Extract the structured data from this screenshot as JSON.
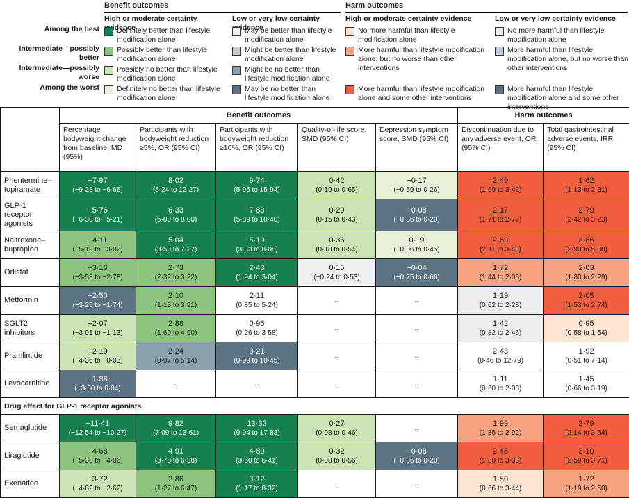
{
  "chart_data": {
    "type": "heatmap",
    "palette": {
      "g1": "#17804F",
      "g2": "#8CC47E",
      "g3": "#CBE4B4",
      "g4": "#E8F1DA",
      "b1": "#EEF0F1",
      "b2": "#C4CED4",
      "b3": "#8BA1AD",
      "b4": "#5B7383",
      "r1": "#FCE4D3",
      "r2": "#F5A380",
      "r3": "#F15E3E",
      "h1": "#ECEDEE",
      "h2": "#C2CDD3",
      "h3": "#5B7383",
      "w": "#FFFFFF"
    },
    "legend": {
      "row_labels": [
        "Among the best",
        "Intermediate—possibly better",
        "Intermediate—possibly worse",
        "Among the worst"
      ],
      "sections": [
        {
          "title": "Benefit outcomes",
          "groups": [
            {
              "title": "High or moderate certainty evidence",
              "items": [
                {
                  "slot": 0,
                  "color": "g1",
                  "label": "Definitely better than lifestyle modification alone"
                },
                {
                  "slot": 1,
                  "color": "g2",
                  "label": "Possibly better than lifestyle modification alone"
                },
                {
                  "slot": 2,
                  "color": "g3",
                  "label": "Possibly no better than lifestyle modification alone"
                },
                {
                  "slot": 3,
                  "color": "g4",
                  "label": "Definitely no better than lifestyle modification alone"
                }
              ]
            },
            {
              "title": "Low or very low certainty evidence",
              "items": [
                {
                  "slot": 0,
                  "color": "b1",
                  "label": "May be better than lifestyle modification alone"
                },
                {
                  "slot": 1,
                  "color": "b2",
                  "label": "Might be better than lifestyle modification alone"
                },
                {
                  "slot": 2,
                  "color": "b3",
                  "label": "Might be no better than lifestyle modification alone"
                },
                {
                  "slot": 3,
                  "color": "b4",
                  "label": "May be no better than lifestyle modification alone"
                }
              ]
            }
          ]
        },
        {
          "title": "Harm outcomes",
          "groups": [
            {
              "title": "High or moderate certainty evidence",
              "items": [
                {
                  "slot": 0,
                  "color": "r1",
                  "label": "No more harmful than lifestyle modification alone"
                },
                {
                  "slot": 1,
                  "color": "r2",
                  "label": "More harmful than lifestyle modification alone, but no worse than other interventions"
                },
                {
                  "slot": 3,
                  "color": "r3",
                  "label": "More harmful than lifestyle modification alone and some other interventions"
                }
              ]
            },
            {
              "title": "Low or very low certainty evidence",
              "items": [
                {
                  "slot": 0,
                  "color": "h1",
                  "label": "No more harmful than lifestyle modification alone"
                },
                {
                  "slot": 1,
                  "color": "h2",
                  "label": "More harmful than lifestyle modification alone, but no worse than other interventions"
                },
                {
                  "slot": 3,
                  "color": "h3",
                  "label": "More harmful than lifestyle modification alone and some other interventions"
                }
              ]
            }
          ]
        }
      ]
    },
    "table": {
      "group_headers": [
        {
          "label": "Benefit outcomes",
          "span": 5
        },
        {
          "label": "Harm outcomes",
          "span": 2
        }
      ],
      "columns": [
        "Percentage bodyweight change from baseline, MD (95%)",
        "Participants with bodyweight reduction ≥5%, OR (95% CI)",
        "Participants with bodyweight reduction ≥10%, OR (95% CI)",
        "Quality-of-life score, SMD (95% CI)",
        "Depression symptom score, SMD (95% CI)",
        "Discontinuation due to any adverse event, OR (95% CI)",
        "Total gastrointestinal adverse events, IRR (95% CI)"
      ],
      "rows": [
        {
          "label": "Phentermine–topiramate",
          "cells": [
            {
              "v": "−7·97",
              "ci": "(−9·28 to −6·66)",
              "c": "g1"
            },
            {
              "v": "8·02",
              "ci": "(5·24 to 12·27)",
              "c": "g1"
            },
            {
              "v": "9·74",
              "ci": "(5·95 to 15·94)",
              "c": "g1"
            },
            {
              "v": "0·42",
              "ci": "(0·19 to 0·65)",
              "c": "g3"
            },
            {
              "v": "−0·17",
              "ci": "(−0·59 to 0·26)",
              "c": "g4"
            },
            {
              "v": "2·40",
              "ci": "(1·69 to 3·42)",
              "c": "r3"
            },
            {
              "v": "1·62",
              "ci": "(1·13 to 2·31)",
              "c": "r3"
            }
          ]
        },
        {
          "label": "GLP-1 receptor agonists",
          "cells": [
            {
              "v": "−5·76",
              "ci": "(−6·30 to −5·21)",
              "c": "g1"
            },
            {
              "v": "6·33",
              "ci": "(5·00 to 8·00)",
              "c": "g1"
            },
            {
              "v": "7·83",
              "ci": "(5·89 to 10·40)",
              "c": "g1"
            },
            {
              "v": "0·29",
              "ci": "(0·15 to 0·43)",
              "c": "g3"
            },
            {
              "v": "−0·08",
              "ci": "(−0·36 to 0·20)",
              "c": "b4"
            },
            {
              "v": "2·17",
              "ci": "(1·71 to 2·77)",
              "c": "r3"
            },
            {
              "v": "2·79",
              "ci": "(2·42 to 3·23)",
              "c": "r3"
            }
          ]
        },
        {
          "label": "Naltrexone–bupropion",
          "cells": [
            {
              "v": "−4·11",
              "ci": "(−5·19 to −3·02)",
              "c": "g2"
            },
            {
              "v": "5·04",
              "ci": "(3·50 to 7·27)",
              "c": "g1"
            },
            {
              "v": "5·19",
              "ci": "(3·33 to 8·08)",
              "c": "g1"
            },
            {
              "v": "0·36",
              "ci": "(0·18 to 0·54)",
              "c": "g3"
            },
            {
              "v": "0·19",
              "ci": "(−0·06 to 0·45)",
              "c": "g4"
            },
            {
              "v": "2·69",
              "ci": "(2·11 to 3·43)",
              "c": "r3"
            },
            {
              "v": "3·86",
              "ci": "(2·93 to 5·08)",
              "c": "r3"
            }
          ]
        },
        {
          "label": "Orlistat",
          "cells": [
            {
              "v": "−3·16",
              "ci": "(−3·53 to −2·78)",
              "c": "g2"
            },
            {
              "v": "2·73",
              "ci": "(2·32 to 3·22)",
              "c": "g2"
            },
            {
              "v": "2·43",
              "ci": "(1·94 to 3·04)",
              "c": "g1"
            },
            {
              "v": "0·15",
              "ci": "(−0·24 to 0·53)",
              "c": "b1"
            },
            {
              "v": "−0·04",
              "ci": "(−0·75 to 0·66)",
              "c": "b4"
            },
            {
              "v": "1·72",
              "ci": "(1·44 to 2·05)",
              "c": "r2"
            },
            {
              "v": "2·03",
              "ci": "(1·80 to 2·29)",
              "c": "r2"
            }
          ]
        },
        {
          "label": "Metformin",
          "cells": [
            {
              "v": "−2·50",
              "ci": "(−3·25 to −1·74)",
              "c": "b4"
            },
            {
              "v": "2·10",
              "ci": "(1·13 to 3·91)",
              "c": "g2"
            },
            {
              "v": "2·11",
              "ci": "(0·85 to 5·24)",
              "c": "w"
            },
            {
              "v": "..",
              "ci": "",
              "c": "w"
            },
            {
              "v": "..",
              "ci": "",
              "c": "w"
            },
            {
              "v": "1·19",
              "ci": "(0·62 to 2·28)",
              "c": "h1"
            },
            {
              "v": "2·05",
              "ci": "(1·53 to 2·74)",
              "c": "r3"
            }
          ]
        },
        {
          "label": "SGLT2 inhibitors",
          "cells": [
            {
              "v": "−2·07",
              "ci": "(−3·01 to −1·13)",
              "c": "g3"
            },
            {
              "v": "2·88",
              "ci": "(1·69 to 4·90)",
              "c": "g2"
            },
            {
              "v": "0·96",
              "ci": "(0·26 to 3·58)",
              "c": "w"
            },
            {
              "v": "..",
              "ci": "",
              "c": "w"
            },
            {
              "v": "..",
              "ci": "",
              "c": "w"
            },
            {
              "v": "1·42",
              "ci": "(0·82 to 2·46)",
              "c": "h1"
            },
            {
              "v": "0·95",
              "ci": "(0·58 to 1·54)",
              "c": "r1"
            }
          ]
        },
        {
          "label": "Pramlintide",
          "cells": [
            {
              "v": "−2·19",
              "ci": "(−4·36 to −0·03)",
              "c": "g3"
            },
            {
              "v": "2·24",
              "ci": "(0·97 to 5·14)",
              "c": "b3"
            },
            {
              "v": "3·21",
              "ci": "(0·99 to 10·45)",
              "c": "b4"
            },
            {
              "v": "..",
              "ci": "",
              "c": "w"
            },
            {
              "v": "..",
              "ci": "",
              "c": "w"
            },
            {
              "v": "2·43",
              "ci": "(0·46 to 12·79)",
              "c": "w"
            },
            {
              "v": "1·92",
              "ci": "(0·51 to 7·14)",
              "c": "w"
            }
          ]
        },
        {
          "label": "Levocarnitine",
          "cells": [
            {
              "v": "−1·88",
              "ci": "(−3·80 to 0·04)",
              "c": "b4"
            },
            {
              "v": "..",
              "ci": "",
              "c": "w"
            },
            {
              "v": "..",
              "ci": "",
              "c": "w"
            },
            {
              "v": "..",
              "ci": "",
              "c": "w"
            },
            {
              "v": "..",
              "ci": "",
              "c": "w"
            },
            {
              "v": "1·11",
              "ci": "(0·60 to 2·08)",
              "c": "w"
            },
            {
              "v": "1·45",
              "ci": "(0·66 to 3·19)",
              "c": "w"
            }
          ]
        },
        {
          "section": "Drug effect for GLP-1 receptor agonists"
        },
        {
          "label": "Semaglutide",
          "cells": [
            {
              "v": "−11·41",
              "ci": "(−12·54 to −10·27)",
              "c": "g1"
            },
            {
              "v": "9·82",
              "ci": "(7·09 to 13·61)",
              "c": "g1"
            },
            {
              "v": "13·32",
              "ci": "(9·94 to 17·83)",
              "c": "g1"
            },
            {
              "v": "0·27",
              "ci": "(0·08 to 0·46)",
              "c": "g3"
            },
            {
              "v": "..",
              "ci": "",
              "c": "w"
            },
            {
              "v": "1·99",
              "ci": "(1·35 to 2·92)",
              "c": "r2"
            },
            {
              "v": "2·79",
              "ci": "(2·14 to 3·64)",
              "c": "r3"
            }
          ]
        },
        {
          "label": "Liraglutide",
          "cells": [
            {
              "v": "−4·68",
              "ci": "(−5·30 to −4·06)",
              "c": "g2"
            },
            {
              "v": "4·91",
              "ci": "(3·78 to 6·38)",
              "c": "g1"
            },
            {
              "v": "4·80",
              "ci": "(3·60 to 6·41)",
              "c": "g1"
            },
            {
              "v": "0·32",
              "ci": "(0·08 to 0·56)",
              "c": "g3"
            },
            {
              "v": "−0·08",
              "ci": "(−0·36 to 0·20)",
              "c": "b4"
            },
            {
              "v": "2·45",
              "ci": "(1·80 to 3·33)",
              "c": "r3"
            },
            {
              "v": "3·10",
              "ci": "(2·59 to 3·71)",
              "c": "r3"
            }
          ]
        },
        {
          "label": "Exenatide",
          "cells": [
            {
              "v": "−3·72",
              "ci": "(−4·82 to −2·62)",
              "c": "g3"
            },
            {
              "v": "2·86",
              "ci": "(1·27 to 6·47)",
              "c": "g2"
            },
            {
              "v": "3·12",
              "ci": "(1·17 to 8·32)",
              "c": "g1"
            },
            {
              "v": "..",
              "ci": "",
              "c": "w"
            },
            {
              "v": "..",
              "ci": "",
              "c": "w"
            },
            {
              "v": "1·50",
              "ci": "(0·66 to 3·44)",
              "c": "r1"
            },
            {
              "v": "1·72",
              "ci": "(1·19 to 2·50)",
              "c": "r2"
            }
          ]
        }
      ]
    }
  }
}
